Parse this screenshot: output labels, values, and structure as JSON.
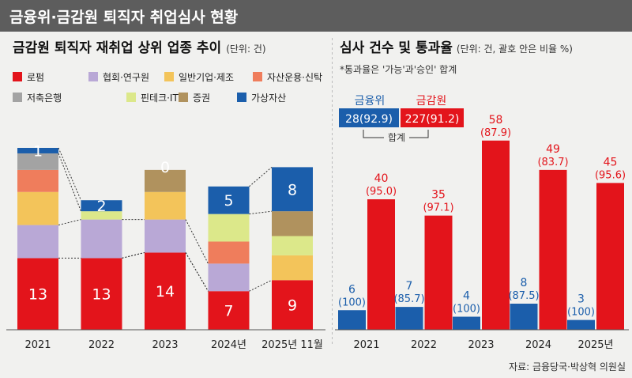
{
  "header": {
    "title": "금융위·금감원 퇴직자 취업심사 현황"
  },
  "source": "자료: 금융당국·박상혁 의원실",
  "chart_data": [
    {
      "type": "bar",
      "stacked": true,
      "title": "금감원 퇴직자 재취업 상위 업종 추이",
      "unit": "(단위: 건)",
      "categories": [
        "2021",
        "2022",
        "2023",
        "2024년",
        "2025년 11월"
      ],
      "series": [
        {
          "name": "로펌",
          "color": "#e3141b",
          "values": [
            13,
            13,
            14,
            7,
            9
          ],
          "labels": [
            "13",
            "13",
            "14",
            "7",
            "9"
          ]
        },
        {
          "name": "협회·연구원",
          "color": "#b9a8d6",
          "values": [
            6,
            7,
            6,
            5,
            0
          ]
        },
        {
          "name": "일반기업·제조",
          "color": "#f3c45a",
          "values": [
            6,
            0,
            5,
            0,
            4.5
          ]
        },
        {
          "name": "자산운용·신탁",
          "color": "#ef7d5c",
          "values": [
            4,
            0,
            0,
            4,
            0
          ]
        },
        {
          "name": "저축은행",
          "color": "#a3a3a3",
          "values": [
            3,
            0,
            0,
            0,
            0
          ]
        },
        {
          "name": "핀테크·IT",
          "color": "#dce88a",
          "values": [
            0,
            1.5,
            0,
            5,
            3.5
          ]
        },
        {
          "name": "증권",
          "color": "#b0925e",
          "values": [
            0,
            0,
            4,
            0,
            4.5
          ]
        },
        {
          "name": "가상자산",
          "color": "#1b5eab",
          "values": [
            1,
            2,
            0,
            5,
            8
          ],
          "labels": [
            "1",
            "2",
            "0",
            "5",
            "8"
          ]
        }
      ],
      "ylim": [
        0,
        33
      ]
    },
    {
      "type": "bar",
      "title": "심사 건수 및 통과율",
      "unit": "(단위: 건, 괄호 안은 비율 %)",
      "note": "*통과율은 '가능'과'승인' 합계",
      "categories": [
        "2021",
        "2022",
        "2023",
        "2024",
        "2025년"
      ],
      "series": [
        {
          "name": "금융위",
          "color": "#1b5eab",
          "values": [
            6,
            7,
            4,
            8,
            3
          ],
          "rates": [
            "(100)",
            "(85.7)",
            "(100)",
            "(87.5)",
            "(100)"
          ]
        },
        {
          "name": "금감원",
          "color": "#e3141b",
          "values": [
            40,
            35,
            58,
            49,
            45
          ],
          "rates": [
            "(95.0)",
            "(97.1)",
            "(87.9)",
            "(83.7)",
            "(95.6)"
          ]
        }
      ],
      "totals": [
        {
          "name": "금융위",
          "value": "28(92.9)"
        },
        {
          "name": "금감원",
          "value": "227(91.2)"
        }
      ],
      "totals_label": "합계",
      "ylim": [
        0,
        64
      ]
    }
  ]
}
